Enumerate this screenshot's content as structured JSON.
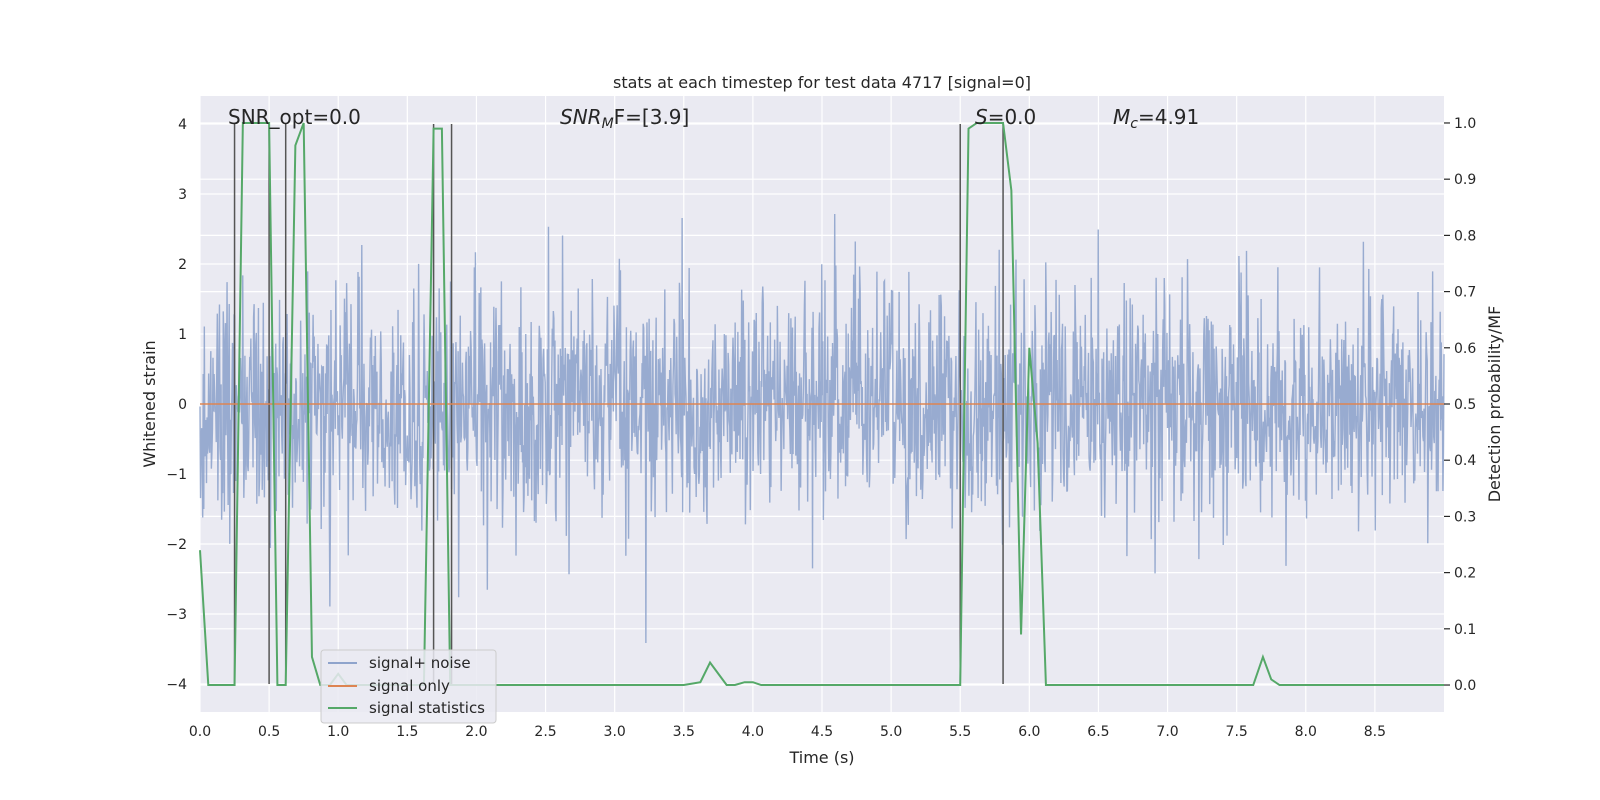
{
  "chart_data": {
    "type": "line",
    "title": "stats at each timestep for test data 4717 [signal=0]",
    "xlabel": "Time (s)",
    "ylabel_left": "Whitened strain",
    "ylabel_right": "Detection probability/MF",
    "xlim": [
      0,
      9
    ],
    "ylim_left": [
      -4.4,
      4.4
    ],
    "ylim_right": [
      -0.048,
      1.048
    ],
    "x_ticks": [
      "0.0",
      "0.5",
      "1.0",
      "1.5",
      "2.0",
      "2.5",
      "3.0",
      "3.5",
      "4.0",
      "4.5",
      "5.0",
      "5.5",
      "6.0",
      "6.5",
      "7.0",
      "7.5",
      "8.0",
      "8.5"
    ],
    "y_ticks_left": [
      "4",
      "3",
      "2",
      "1",
      "0",
      "−1",
      "−2",
      "−3",
      "−4"
    ],
    "y_ticks_right": [
      "1.0",
      "0.9",
      "0.8",
      "0.7",
      "0.6",
      "0.5",
      "0.4",
      "0.3",
      "0.2",
      "0.1",
      "0.0"
    ],
    "grid": true,
    "legend_position": "lower-left",
    "annotations": {
      "snr_opt": "SNR_opt=0.0",
      "snr_mf_base": "SNR",
      "snr_mf_sub": "M",
      "snr_mf_tail": "F=[3.9]",
      "s_italic": "S",
      "s_tail": "=0.0",
      "mc_base": "M",
      "mc_sub": "c",
      "mc_tail": "=4.91"
    },
    "vertical_markers_x": [
      0.25,
      0.5,
      0.62,
      1.69,
      1.82,
      5.5,
      5.81
    ],
    "series": [
      {
        "name": "signal+ noise",
        "axis": "left",
        "color": "#8fa4cc",
        "noise_std": 0.8,
        "x_range": [
          0,
          9
        ],
        "samples": 2300
      },
      {
        "name": "signal only",
        "axis": "left",
        "color": "#dd8452",
        "x": [
          0,
          9
        ],
        "y": [
          0,
          0
        ]
      },
      {
        "name": "signal statistics",
        "axis": "right",
        "color": "#55a868",
        "x": [
          0.0,
          0.06,
          0.12,
          0.18,
          0.25,
          0.31,
          0.37,
          0.44,
          0.5,
          0.56,
          0.62,
          0.69,
          0.75,
          0.81,
          0.87,
          0.94,
          1.0,
          1.06,
          1.12,
          1.19,
          1.25,
          1.5,
          1.62,
          1.69,
          1.75,
          1.81,
          1.87,
          1.94,
          2.0,
          2.2,
          2.4,
          2.5,
          3.0,
          3.5,
          3.62,
          3.69,
          3.75,
          3.81,
          3.87,
          3.94,
          4.0,
          4.06,
          4.5,
          5.0,
          5.5,
          5.56,
          5.62,
          5.69,
          5.75,
          5.81,
          5.87,
          5.94,
          6.0,
          6.06,
          6.12,
          6.5,
          7.0,
          7.5,
          7.62,
          7.69,
          7.75,
          7.81,
          8.0,
          8.5,
          9.0
        ],
        "y": [
          0.24,
          0.0,
          0.0,
          0.0,
          0.0,
          1.0,
          1.0,
          1.0,
          1.0,
          0.0,
          0.0,
          0.96,
          1.0,
          0.05,
          0.0,
          0.0,
          0.02,
          0.0,
          0.0,
          0.0,
          0.0,
          0.0,
          0.0,
          0.99,
          0.99,
          0.0,
          0.0,
          0.0,
          0.0,
          0.0,
          0.0,
          0.0,
          0.0,
          0.0,
          0.005,
          0.04,
          0.02,
          0.0,
          0.0,
          0.005,
          0.005,
          0.0,
          0.0,
          0.0,
          0.0,
          0.99,
          1.0,
          1.0,
          1.0,
          1.0,
          0.88,
          0.09,
          0.6,
          0.43,
          0.0,
          0.0,
          0.0,
          0.0,
          0.0,
          0.05,
          0.01,
          0.0,
          0.0,
          0.0,
          0.0
        ]
      }
    ]
  }
}
